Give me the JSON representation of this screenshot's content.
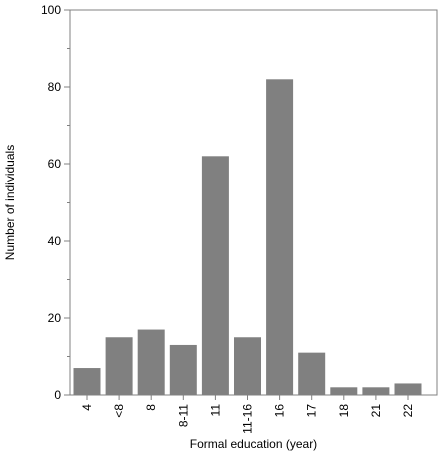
{
  "chart_data": {
    "type": "bar",
    "title": "",
    "xlabel": "Formal education (year)",
    "ylabel": "Number of individuals",
    "categories": [
      "4",
      "<8",
      "8",
      "8-11",
      "11",
      "11-16",
      "16",
      "17",
      "18",
      "21",
      "22"
    ],
    "values": [
      7,
      15,
      17,
      13,
      62,
      15,
      82,
      11,
      2,
      2,
      3
    ],
    "ylim": [
      0,
      100
    ],
    "yticks": [
      "0",
      "20",
      "40",
      "60",
      "80",
      "100"
    ],
    "grid": false,
    "legend": "none",
    "colors": {
      "bar": "#808080",
      "axis": "#808080",
      "text": "#000000"
    }
  }
}
